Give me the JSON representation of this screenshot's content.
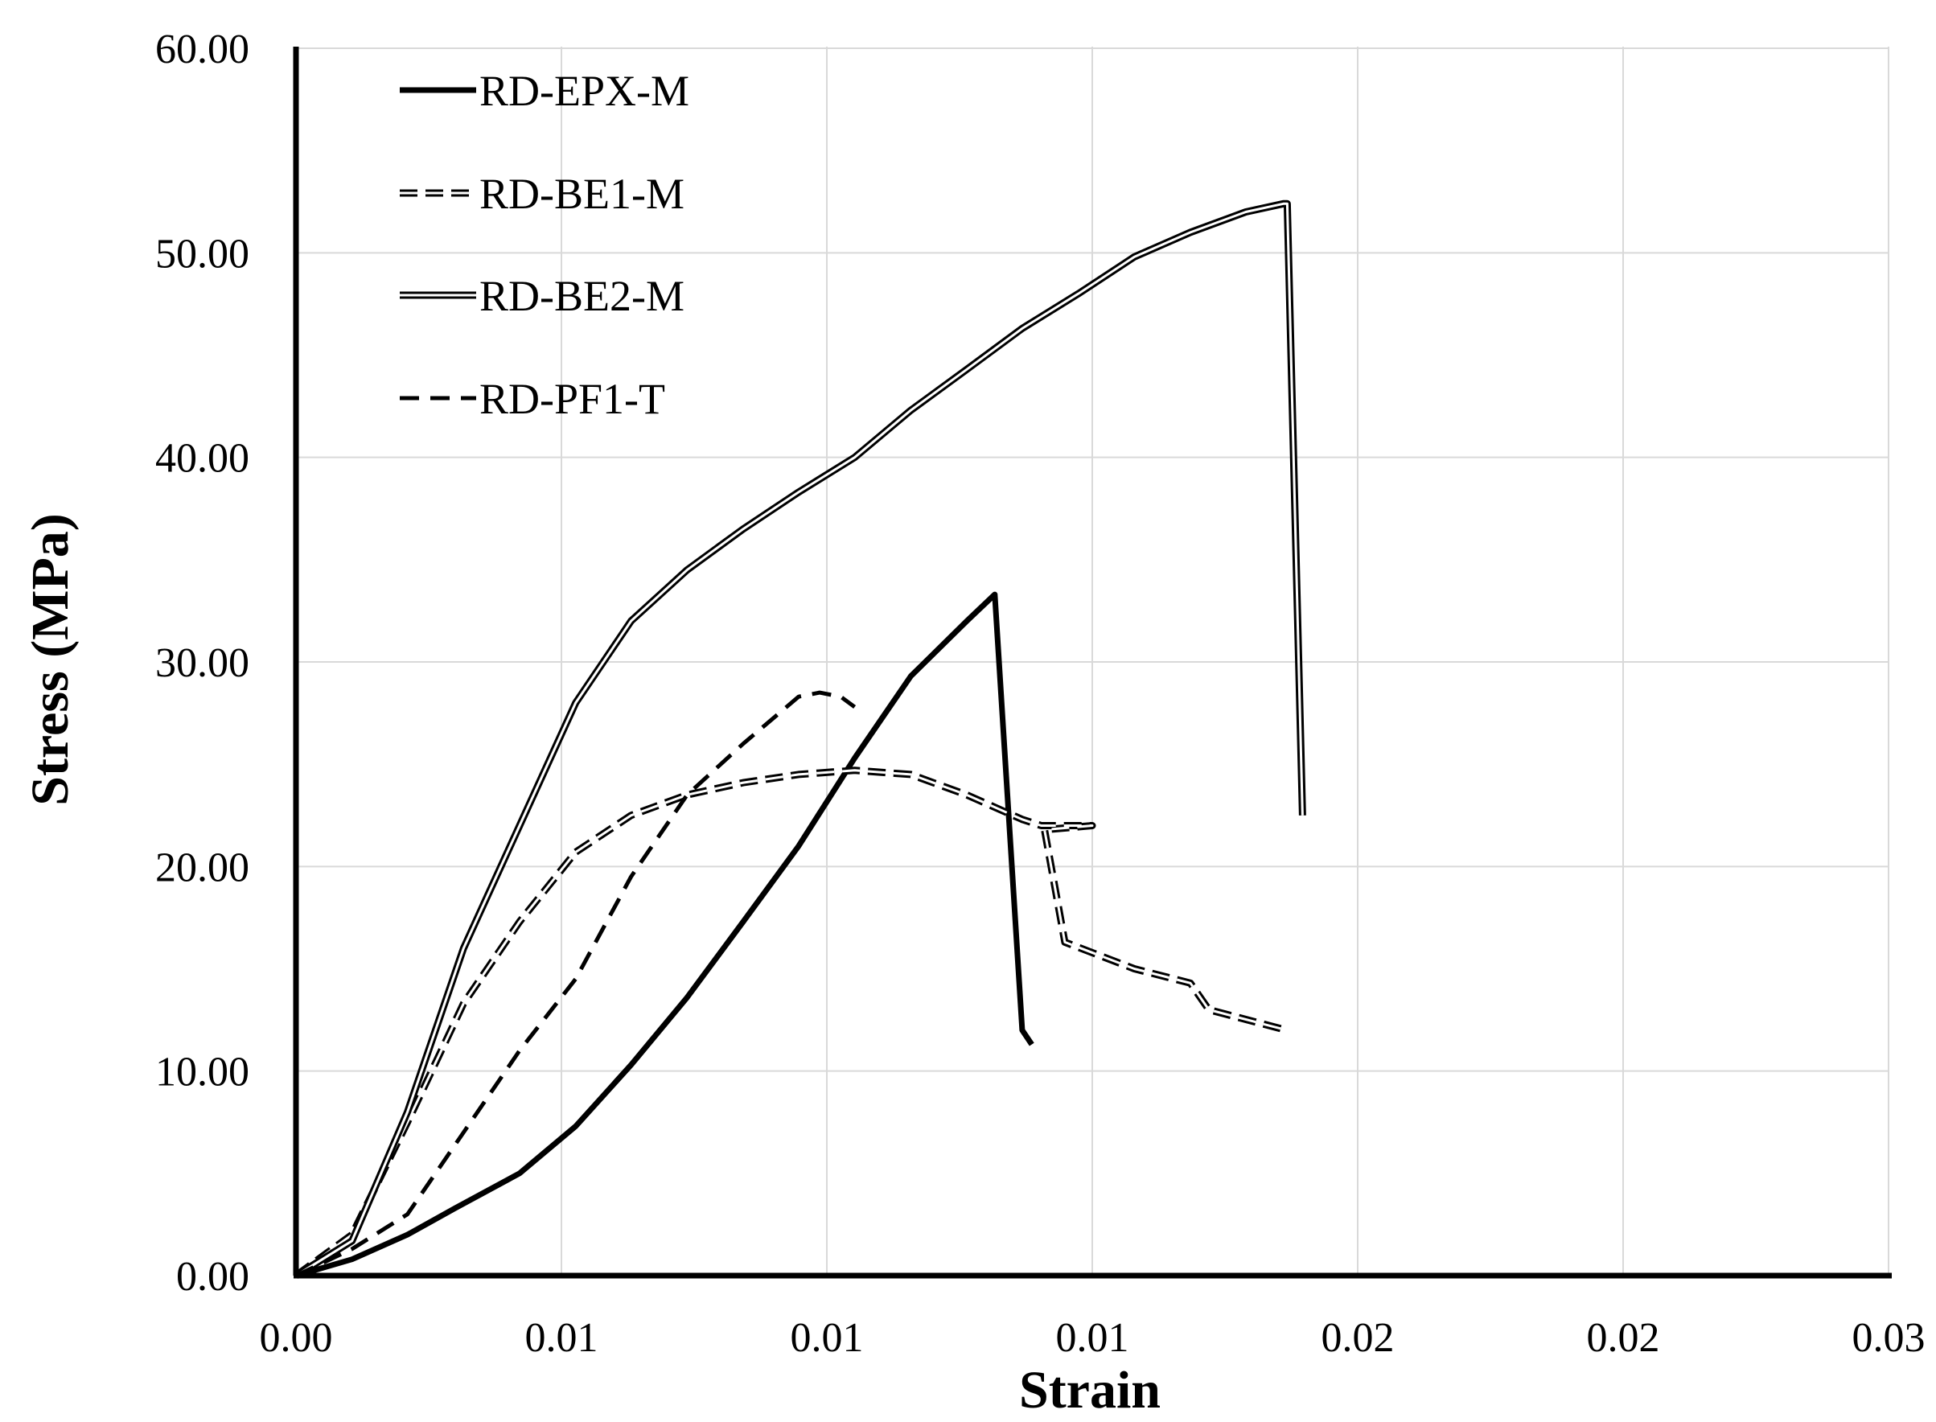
{
  "chart_data": {
    "type": "line",
    "title": "",
    "xlabel": "Strain",
    "ylabel": "Stress (MPa)",
    "xlim": [
      0,
      0.025
    ],
    "ylim": [
      0,
      60
    ],
    "grid": true,
    "legend_position": "top-left",
    "x_ticks": [
      "0.00",
      "0.01",
      "0.01",
      "0.01",
      "0.02",
      "0.02",
      "0.03"
    ],
    "y_ticks": [
      "0.00",
      "10.00",
      "20.00",
      "30.00",
      "40.00",
      "50.00",
      "60.00"
    ],
    "series": [
      {
        "name": "RD-EPX-M",
        "style": "solid-thick",
        "points": [
          [
            0,
            0
          ],
          [
            0.00088,
            0.8
          ],
          [
            0.00175,
            2.0
          ],
          [
            0.0025,
            3.3
          ],
          [
            0.00351,
            5.0
          ],
          [
            0.00439,
            7.3
          ],
          [
            0.00526,
            10.3
          ],
          [
            0.00614,
            13.6
          ],
          [
            0.00702,
            17.3
          ],
          [
            0.00789,
            21.0
          ],
          [
            0.00877,
            25.3
          ],
          [
            0.00965,
            29.3
          ],
          [
            0.01053,
            32.0
          ],
          [
            0.01097,
            33.3
          ],
          [
            0.0114,
            12.0
          ],
          [
            0.01155,
            11.3
          ]
        ]
      },
      {
        "name": "RD-BE1-M",
        "style": "double-dashed",
        "points": [
          [
            0,
            0
          ],
          [
            0.00088,
            2.0
          ],
          [
            0.00175,
            7.5
          ],
          [
            0.00263,
            13.3
          ],
          [
            0.00351,
            17.3
          ],
          [
            0.00439,
            20.7
          ],
          [
            0.00526,
            22.5
          ],
          [
            0.00614,
            23.5
          ],
          [
            0.00702,
            24.1
          ],
          [
            0.00789,
            24.5
          ],
          [
            0.00877,
            24.7
          ],
          [
            0.00965,
            24.5
          ],
          [
            0.01053,
            23.5
          ],
          [
            0.0114,
            22.3
          ],
          [
            0.0117,
            22.0
          ],
          [
            0.0125,
            22.0
          ],
          [
            0.01175,
            21.8
          ],
          [
            0.01207,
            16.3
          ],
          [
            0.01316,
            15.0
          ],
          [
            0.01404,
            14.3
          ],
          [
            0.01433,
            13.0
          ],
          [
            0.01555,
            12.0
          ]
        ]
      },
      {
        "name": "RD-BE2-M",
        "style": "double-solid",
        "points": [
          [
            0,
            0
          ],
          [
            0.00088,
            1.7
          ],
          [
            0.00175,
            8.0
          ],
          [
            0.00263,
            16.0
          ],
          [
            0.00351,
            22.0
          ],
          [
            0.00439,
            28.0
          ],
          [
            0.00526,
            32.0
          ],
          [
            0.00614,
            34.5
          ],
          [
            0.00702,
            36.5
          ],
          [
            0.00789,
            38.3
          ],
          [
            0.00877,
            40.0
          ],
          [
            0.00965,
            42.3
          ],
          [
            0.01053,
            44.3
          ],
          [
            0.0114,
            46.3
          ],
          [
            0.01228,
            48.0
          ],
          [
            0.01316,
            49.8
          ],
          [
            0.01404,
            51.0
          ],
          [
            0.01491,
            52.0
          ],
          [
            0.0155,
            52.4
          ],
          [
            0.01556,
            52.4
          ],
          [
            0.0158,
            22.5
          ]
        ]
      },
      {
        "name": "RD-PF1-T",
        "style": "dashed",
        "points": [
          [
            0,
            0
          ],
          [
            0.00088,
            1.3
          ],
          [
            0.00175,
            3.0
          ],
          [
            0.00263,
            7.0
          ],
          [
            0.00351,
            11.0
          ],
          [
            0.00439,
            14.5
          ],
          [
            0.00526,
            19.5
          ],
          [
            0.00614,
            23.5
          ],
          [
            0.00702,
            26.0
          ],
          [
            0.00789,
            28.3
          ],
          [
            0.00822,
            28.5
          ],
          [
            0.00855,
            28.3
          ],
          [
            0.00877,
            27.8
          ]
        ]
      }
    ]
  }
}
